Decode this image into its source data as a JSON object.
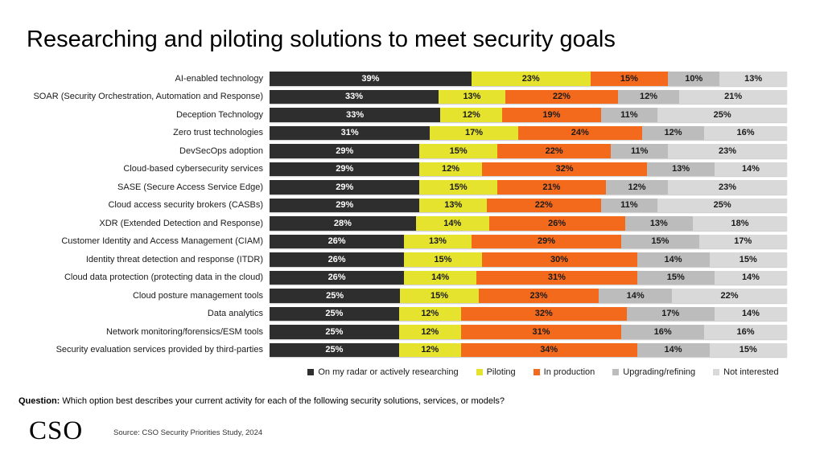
{
  "title": "Researching and piloting solutions to meet security goals",
  "question": {
    "label": "Question:",
    "text": " Which option best describes your current activity for each of the following security solutions, services, or models?"
  },
  "footer": {
    "logo": "CSO",
    "source": "Source: CSO Security Priorities Study, 2024"
  },
  "colors": {
    "radar": "#2e2e2e",
    "piloting": "#e5e32d",
    "production": "#f46a1d",
    "upgrading": "#bcbcbc",
    "not_interested": "#d9d9d9"
  },
  "chart_data": {
    "type": "bar",
    "orientation": "horizontal-stacked",
    "title": "Researching and piloting solutions to meet security goals",
    "xlabel": "",
    "ylabel": "",
    "xlim": [
      0,
      100
    ],
    "grid": false,
    "legend_position": "bottom",
    "value_suffix": "%",
    "categories": [
      "AI-enabled technology",
      "SOAR (Security Orchestration, Automation and Response)",
      "Deception Technology",
      "Zero trust technologies",
      "DevSecOps adoption",
      "Cloud-based cybersecurity services",
      "SASE (Secure Access Service Edge)",
      "Cloud access security brokers (CASBs)",
      "XDR (Extended Detection and Response)",
      "Customer Identity and Access Management (CIAM)",
      "Identity threat detection and response (ITDR)",
      "Cloud data protection (protecting data in the cloud)",
      "Cloud posture management tools",
      "Data analytics",
      "Network monitoring/forensics/ESM tools",
      "Security evaluation services provided by third-parties"
    ],
    "series": [
      {
        "name": "On my radar or actively researching",
        "color": "#2e2e2e",
        "text_color": "#ffffff",
        "values": [
          39,
          33,
          33,
          31,
          29,
          29,
          29,
          29,
          28,
          26,
          26,
          26,
          25,
          25,
          25,
          25
        ]
      },
      {
        "name": "Piloting",
        "color": "#e5e32d",
        "text_color": "#1a1a1a",
        "values": [
          23,
          13,
          12,
          17,
          15,
          12,
          15,
          13,
          14,
          13,
          15,
          14,
          15,
          12,
          12,
          12
        ]
      },
      {
        "name": "In production",
        "color": "#f46a1d",
        "text_color": "#1a1a1a",
        "values": [
          15,
          22,
          19,
          24,
          22,
          32,
          21,
          22,
          26,
          29,
          30,
          31,
          23,
          32,
          31,
          34
        ]
      },
      {
        "name": "Upgrading/refining",
        "color": "#bcbcbc",
        "text_color": "#1a1a1a",
        "values": [
          10,
          12,
          11,
          12,
          11,
          13,
          12,
          11,
          13,
          15,
          14,
          15,
          14,
          17,
          16,
          14
        ]
      },
      {
        "name": "Not interested",
        "color": "#d9d9d9",
        "text_color": "#1a1a1a",
        "values": [
          13,
          21,
          25,
          16,
          23,
          14,
          23,
          25,
          18,
          17,
          15,
          14,
          22,
          14,
          16,
          15
        ]
      }
    ]
  }
}
